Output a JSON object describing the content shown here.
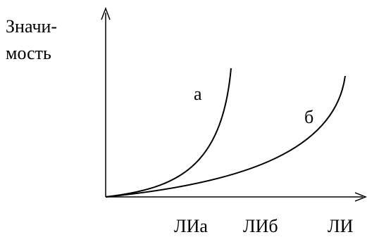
{
  "y_axis_label": {
    "line1": "Значи-",
    "line2": "мость"
  },
  "curve_labels": {
    "a": "а",
    "b": "б"
  },
  "x_tick_labels": {
    "li_a": "ЛИа",
    "li_b": "ЛИб",
    "li": "ЛИ"
  },
  "colors": {
    "stroke": "#000000",
    "background": "#ffffff"
  }
}
